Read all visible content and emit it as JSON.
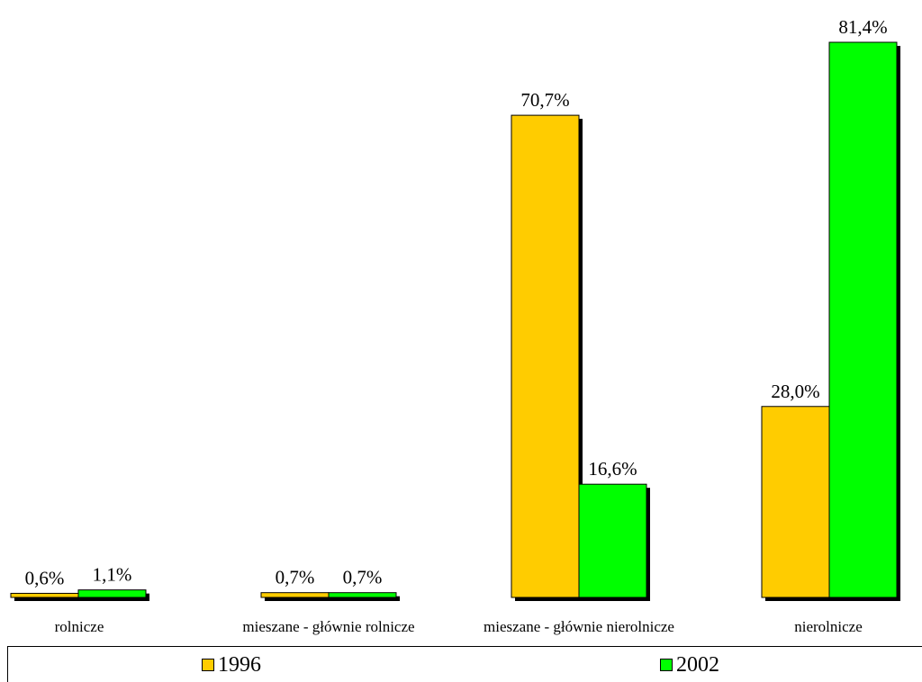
{
  "chart_data": {
    "type": "bar",
    "categories": [
      "rolnicze",
      "mieszane - głównie rolnicze",
      "mieszane - głównie nierolnicze",
      "nierolnicze"
    ],
    "series": [
      {
        "name": "1996",
        "values": [
          0.6,
          0.7,
          70.7,
          28.0
        ],
        "labels": [
          "0,6%",
          "0,7%",
          "70,7%",
          "28,0%"
        ],
        "color": "#FFCC00"
      },
      {
        "name": "2002",
        "values": [
          1.1,
          0.7,
          16.6,
          81.4
        ],
        "labels": [
          "1,1%",
          "0,7%",
          "16,6%",
          "81,4%"
        ],
        "color": "#00FF00"
      }
    ],
    "ylim": [
      0,
      81.4
    ],
    "grid": false,
    "legend_position": "bottom"
  }
}
